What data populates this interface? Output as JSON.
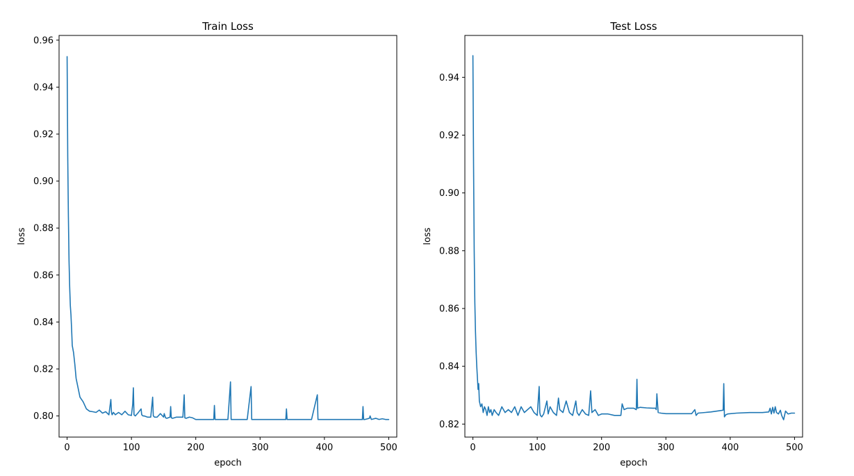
{
  "style": {
    "line_color": "#1f77b4"
  },
  "chart_data": [
    {
      "type": "line",
      "title": "Train Loss",
      "xlabel": "epoch",
      "ylabel": "loss",
      "xlim": [
        -12.5,
        512.5
      ],
      "ylim": [
        0.791,
        0.962
      ],
      "xticks": [
        0,
        100,
        200,
        300,
        400,
        500
      ],
      "yticks": [
        0.8,
        0.82,
        0.84,
        0.86,
        0.88,
        0.9,
        0.92,
        0.94,
        0.96
      ],
      "ytick_labels": [
        "0.80",
        "0.82",
        "0.84",
        "0.86",
        "0.88",
        "0.90",
        "0.92",
        "0.94",
        "0.96"
      ],
      "grid": false,
      "series": [
        {
          "x": [
            0,
            1,
            2,
            3,
            4,
            5,
            6,
            7,
            8,
            10,
            12,
            14,
            17,
            20,
            25,
            30,
            35,
            40,
            45,
            50,
            55,
            60,
            65,
            68,
            69,
            70,
            72,
            75,
            80,
            85,
            90,
            95,
            100,
            102,
            103,
            104,
            106,
            110,
            115,
            116,
            118,
            120,
            125,
            130,
            133,
            134,
            136,
            140,
            145,
            150,
            151,
            153,
            155,
            160,
            161,
            162,
            164,
            170,
            175,
            180,
            182,
            183,
            185,
            190,
            195,
            200,
            210,
            220,
            228,
            229,
            230,
            232,
            240,
            250,
            254,
            255,
            256,
            258,
            270,
            280,
            286,
            287,
            288,
            290,
            300,
            320,
            340,
            341,
            342,
            344,
            360,
            380,
            389,
            390,
            391,
            393,
            400,
            420,
            440,
            459,
            460,
            461,
            463,
            470,
            471,
            473,
            480,
            485,
            490,
            495,
            500
          ],
          "y": [
            0.953,
            0.91,
            0.885,
            0.866,
            0.855,
            0.847,
            0.843,
            0.837,
            0.83,
            0.827,
            0.822,
            0.816,
            0.812,
            0.808,
            0.806,
            0.803,
            0.802,
            0.8018,
            0.8015,
            0.8025,
            0.8012,
            0.8018,
            0.8005,
            0.807,
            0.8015,
            0.8005,
            0.8015,
            0.8005,
            0.8015,
            0.8005,
            0.802,
            0.8005,
            0.8002,
            0.805,
            0.812,
            0.8005,
            0.8,
            0.8012,
            0.803,
            0.8005,
            0.8,
            0.8,
            0.7995,
            0.7995,
            0.808,
            0.8,
            0.7995,
            0.7995,
            0.801,
            0.7995,
            0.801,
            0.7992,
            0.799,
            0.7995,
            0.804,
            0.7992,
            0.799,
            0.7995,
            0.7995,
            0.7995,
            0.809,
            0.7992,
            0.799,
            0.7995,
            0.7992,
            0.7985,
            0.7985,
            0.7985,
            0.7985,
            0.8045,
            0.7985,
            0.7985,
            0.7985,
            0.7985,
            0.8145,
            0.7985,
            0.7985,
            0.7985,
            0.7985,
            0.7985,
            0.8125,
            0.7985,
            0.7985,
            0.7985,
            0.7985,
            0.7985,
            0.7985,
            0.803,
            0.7985,
            0.7985,
            0.7985,
            0.7985,
            0.809,
            0.7985,
            0.7985,
            0.7985,
            0.7985,
            0.7985,
            0.7985,
            0.7985,
            0.804,
            0.7985,
            0.7985,
            0.799,
            0.8,
            0.7985,
            0.799,
            0.7985,
            0.7988,
            0.7985,
            0.7985
          ]
        }
      ]
    },
    {
      "type": "line",
      "title": "Test Loss",
      "xlabel": "epoch",
      "ylabel": "loss",
      "xlim": [
        -12.5,
        512.5
      ],
      "ylim": [
        0.8155,
        0.9545
      ],
      "xticks": [
        0,
        100,
        200,
        300,
        400,
        500
      ],
      "yticks": [
        0.82,
        0.84,
        0.86,
        0.88,
        0.9,
        0.92,
        0.94
      ],
      "ytick_labels": [
        "0.82",
        "0.84",
        "0.86",
        "0.88",
        "0.90",
        "0.92",
        "0.94"
      ],
      "grid": false,
      "series": [
        {
          "x": [
            0,
            1,
            2,
            3,
            4,
            5,
            6,
            7,
            8,
            9,
            10,
            12,
            14,
            16,
            18,
            20,
            22,
            24,
            26,
            28,
            30,
            33,
            36,
            40,
            45,
            50,
            55,
            60,
            65,
            70,
            75,
            80,
            85,
            90,
            95,
            100,
            103,
            104,
            105,
            107,
            110,
            115,
            117,
            120,
            125,
            130,
            133,
            135,
            140,
            145,
            150,
            155,
            160,
            162,
            165,
            170,
            175,
            180,
            183,
            185,
            190,
            195,
            200,
            210,
            220,
            230,
            232,
            235,
            240,
            250,
            254,
            255,
            256,
            260,
            270,
            280,
            284,
            285,
            286,
            288,
            292,
            300,
            320,
            340,
            345,
            347,
            350,
            370,
            389,
            390,
            391,
            393,
            396,
            410,
            430,
            450,
            460,
            462,
            464,
            466,
            468,
            470,
            472,
            475,
            478,
            480,
            483,
            486,
            490,
            495,
            500
          ],
          "y": [
            0.9475,
            0.91,
            0.88,
            0.862,
            0.852,
            0.845,
            0.84,
            0.836,
            0.832,
            0.834,
            0.828,
            0.826,
            0.827,
            0.824,
            0.826,
            0.825,
            0.823,
            0.826,
            0.824,
            0.825,
            0.823,
            0.825,
            0.824,
            0.823,
            0.826,
            0.824,
            0.825,
            0.824,
            0.826,
            0.823,
            0.826,
            0.824,
            0.825,
            0.826,
            0.824,
            0.823,
            0.833,
            0.824,
            0.823,
            0.8225,
            0.8235,
            0.828,
            0.8235,
            0.826,
            0.824,
            0.823,
            0.829,
            0.825,
            0.824,
            0.828,
            0.824,
            0.823,
            0.828,
            0.824,
            0.823,
            0.825,
            0.8235,
            0.823,
            0.8315,
            0.824,
            0.825,
            0.823,
            0.8235,
            0.8235,
            0.823,
            0.823,
            0.827,
            0.825,
            0.8255,
            0.8255,
            0.825,
            0.8355,
            0.8255,
            0.8258,
            0.8256,
            0.8255,
            0.8255,
            0.825,
            0.8305,
            0.824,
            0.8238,
            0.8236,
            0.8236,
            0.8236,
            0.825,
            0.823,
            0.8238,
            0.8242,
            0.8248,
            0.834,
            0.8225,
            0.8232,
            0.8235,
            0.8238,
            0.824,
            0.824,
            0.8242,
            0.8255,
            0.8235,
            0.8258,
            0.8238,
            0.826,
            0.824,
            0.8235,
            0.8248,
            0.823,
            0.8215,
            0.8245,
            0.8235,
            0.8238,
            0.8238
          ]
        }
      ]
    }
  ]
}
